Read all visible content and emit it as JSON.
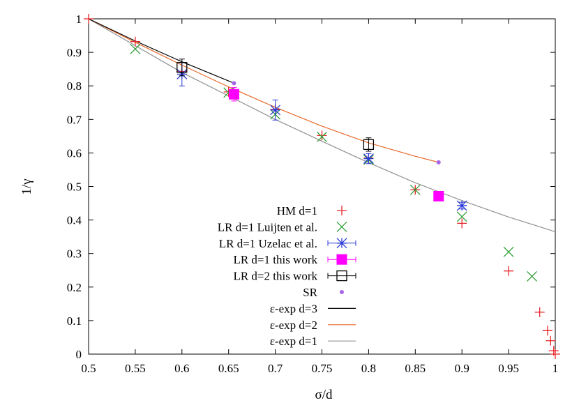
{
  "chart_data": {
    "type": "scatter",
    "xlabel": "σ/d",
    "ylabel": "1/γ",
    "xlim": [
      0.5,
      1.0
    ],
    "ylim": [
      0,
      1
    ],
    "grid": false,
    "legend_position": "bottom-center",
    "x_ticks": [
      "0.5",
      "0.55",
      "0.6",
      "0.65",
      "0.7",
      "0.75",
      "0.8",
      "0.85",
      "0.9",
      "0.95",
      "1"
    ],
    "y_ticks": [
      "0",
      "0.1",
      "0.2",
      "0.3",
      "0.4",
      "0.5",
      "0.6",
      "0.7",
      "0.8",
      "0.9",
      "1"
    ],
    "series": [
      {
        "name": "HM d=1",
        "marker": "plus",
        "color": "#e8272b",
        "points": [
          [
            0.5,
            1.0
          ],
          [
            0.55,
            0.932
          ],
          [
            0.6,
            0.843
          ],
          [
            0.65,
            0.782
          ],
          [
            0.7,
            0.73
          ],
          [
            0.75,
            0.652
          ],
          [
            0.8,
            0.585
          ],
          [
            0.85,
            0.49
          ],
          [
            0.9,
            0.39
          ],
          [
            0.95,
            0.248
          ],
          [
            0.9833,
            0.125
          ],
          [
            0.9917,
            0.07
          ],
          [
            0.995,
            0.04
          ],
          [
            0.9983,
            0.01
          ],
          [
            1.0,
            0.0
          ]
        ]
      },
      {
        "name": "LR d=1 Luijten et al.",
        "marker": "cross",
        "color": "#2e9e37",
        "points": [
          [
            0.55,
            0.91
          ],
          [
            0.65,
            0.78
          ],
          [
            0.7,
            0.715
          ],
          [
            0.75,
            0.648
          ],
          [
            0.8,
            0.58
          ],
          [
            0.85,
            0.49
          ],
          [
            0.9,
            0.41
          ],
          [
            0.95,
            0.305
          ],
          [
            0.975,
            0.232
          ]
        ]
      },
      {
        "name": "LR d=1 Uzelac et al.",
        "marker": "star",
        "color": "#2a3bd6",
        "points": [
          [
            0.6,
            0.835,
            0.035
          ],
          [
            0.7,
            0.728,
            0.03
          ],
          [
            0.8,
            0.583,
            0.015
          ],
          [
            0.9,
            0.443,
            0.01
          ]
        ]
      },
      {
        "name": "LR d=1 this work",
        "marker": "filled-square",
        "color": "#ff00ff",
        "points": [
          [
            0.6558,
            0.775,
            0.02
          ],
          [
            0.875,
            0.471,
            0.005
          ]
        ]
      },
      {
        "name": "LR d=2 this work",
        "marker": "open-square",
        "color": "#000000",
        "points": [
          [
            0.6,
            0.855,
            0.025
          ],
          [
            0.8,
            0.625,
            0.02
          ]
        ]
      },
      {
        "name": "SR",
        "marker": "dot",
        "color": "#a766e8",
        "points": [
          [
            0.6558,
            0.808
          ],
          [
            0.875,
            0.572
          ]
        ]
      },
      {
        "name": "ε-exp d=3",
        "marker": "line",
        "color": "#000000",
        "points": [
          [
            0.5,
            1.0
          ],
          [
            0.55,
            0.934
          ],
          [
            0.6,
            0.872
          ],
          [
            0.6558,
            0.808
          ]
        ]
      },
      {
        "name": "ε-exp d=2",
        "marker": "line",
        "color": "#e8692b",
        "points": [
          [
            0.5,
            1.0
          ],
          [
            0.55,
            0.93
          ],
          [
            0.6,
            0.862
          ],
          [
            0.65,
            0.797
          ],
          [
            0.7,
            0.736
          ],
          [
            0.75,
            0.68
          ],
          [
            0.8,
            0.63
          ],
          [
            0.85,
            0.59
          ],
          [
            0.875,
            0.572
          ]
        ]
      },
      {
        "name": "ε-exp d=1",
        "marker": "line",
        "color": "#909090",
        "points": [
          [
            0.5,
            1.0
          ],
          [
            0.55,
            0.92
          ],
          [
            0.6,
            0.84
          ],
          [
            0.65,
            0.77
          ],
          [
            0.7,
            0.7
          ],
          [
            0.75,
            0.635
          ],
          [
            0.8,
            0.571
          ],
          [
            0.85,
            0.511
          ],
          [
            0.9,
            0.458
          ],
          [
            0.95,
            0.409
          ],
          [
            1.0,
            0.365
          ]
        ]
      }
    ]
  }
}
